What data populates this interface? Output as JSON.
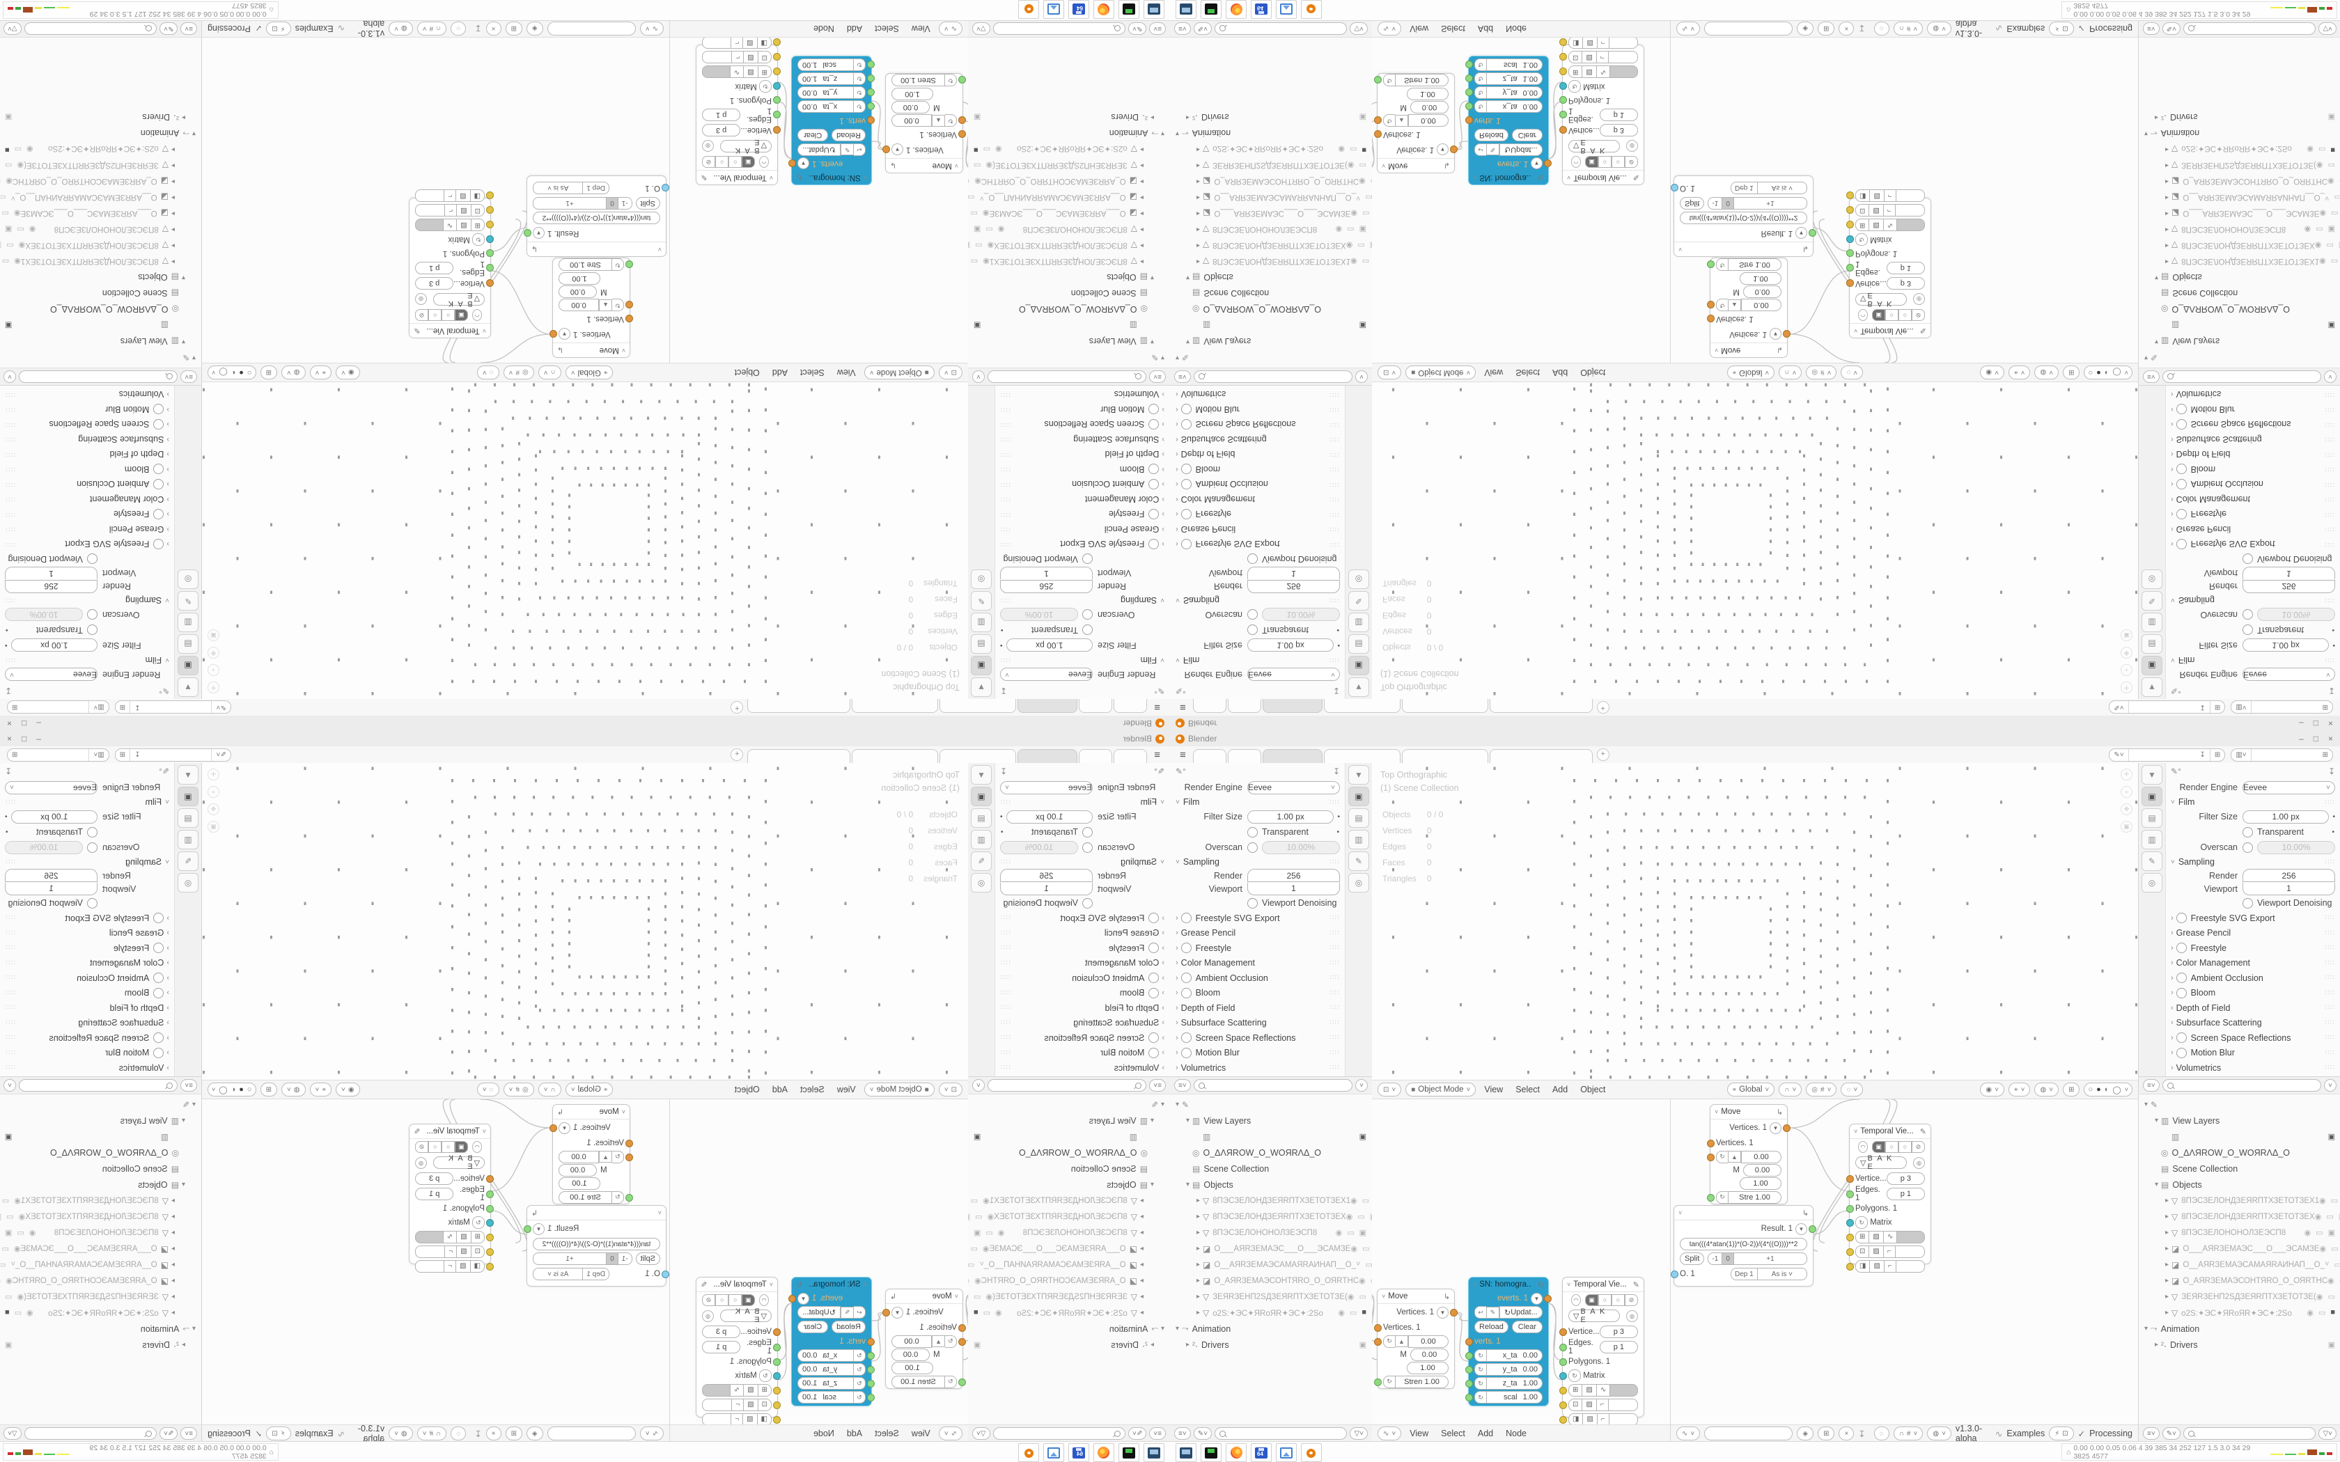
{
  "titlebar": {
    "app": "Blender",
    "minimize": "–",
    "maximize": "□",
    "close": "×",
    "menu": "≡",
    "new_tab": "+"
  },
  "props": {
    "render_engine_label": "Render Engine",
    "render_engine_value": "Eevee",
    "film_title": "Film",
    "filter_size_label": "Filter Size",
    "filter_size_value": "1.00 px",
    "transparent_label": "Transparent",
    "overscan_label": "Overscan",
    "overscan_value": "10.00%",
    "sampling_title": "Sampling",
    "render_label": "Render",
    "render_value": "256",
    "viewport_label": "Viewport",
    "viewport_value": "1",
    "denoise_label": "Viewport Denoising",
    "collapsed": [
      {
        "label": "Freestyle SVG Export"
      },
      {
        "label": "Grease Pencil"
      },
      {
        "label": "Freestyle"
      },
      {
        "label": "Color Management"
      },
      {
        "label": "Ambient Occlusion"
      },
      {
        "label": "Bloom"
      },
      {
        "label": "Depth of Field"
      },
      {
        "label": "Subsurface Scattering"
      },
      {
        "label": "Screen Space Reflections"
      },
      {
        "label": "Motion Blur"
      },
      {
        "label": "Volumetrics"
      }
    ]
  },
  "outliner": {
    "view_layers": "View Layers",
    "world_name": "O_ΔΛЯROW_O_WOЯRΛΔ_O",
    "scene_collection": "Scene Collection",
    "objects_label": "Objects",
    "animation_label": "Animation",
    "drivers_label": "Drivers",
    "items": [
      {
        "name": "8ПЭСЗЕЛОНДЗЕЯRПТХЗЕТОТЗЕХ1"
      },
      {
        "name": "8ПЭСЗЕЛОНДЗЕЯRПТХЗЕТОТЗЕХ"
      },
      {
        "name": "8ПЭСЗЕЛОНОНОЛЗЕЭСП8"
      },
      {
        "name": "О___АЯRЗЕМАЭС___О___ЭСАМЗЕ"
      },
      {
        "name": "О__АЯRЗЕМАЭСАМАЯRАИНАП__О_"
      },
      {
        "name": "О_АЯRЗЕМАЭСОНТЯRО_О_ОЯRТНС"
      },
      {
        "name": "ЗЕЯRЗЕНП2SДЗЕЯRПТХЗЕТОТЗЕ("
      },
      {
        "name": "о2S:✦ЭС✦ЯRоЯR✦ЭС✦:2Sо"
      }
    ]
  },
  "viewport": {
    "overlay_line1": "Top Orthographic",
    "overlay_line2": "(1) Scene Collection",
    "stats": [
      [
        "Objects",
        "0 / 0"
      ],
      [
        "Vertices",
        "0"
      ],
      [
        "Edges",
        "0"
      ],
      [
        "Faces",
        "0"
      ],
      [
        "Triangles",
        "0"
      ]
    ],
    "mode": "Object Mode",
    "menus": [
      "View",
      "Select",
      "Add",
      "Object"
    ],
    "orientation": "Global"
  },
  "node_editor": {
    "menus": [
      "View",
      "Select",
      "Add",
      "Node"
    ],
    "tree_field": "",
    "version": "v1.3.0-alpha",
    "examples": "Examples",
    "status": "Processing"
  },
  "nodes": {
    "move": {
      "title": "Move",
      "output": "Vertices. 1",
      "input": "Vertices. 1",
      "m": "M",
      "x": "0.00",
      "y": "0.00",
      "z": "1.00",
      "strength": "Stren  1.00",
      "strength2": "Stre  1.00"
    },
    "sn": {
      "title": "SN: homogra..",
      "output": "everts. 1",
      "update": "Updat...",
      "reload": "Reload",
      "clear": "Clear",
      "input": "verts. 1",
      "fields": [
        {
          "k": "x_ta",
          "v": "0.00"
        },
        {
          "k": "y_ta",
          "v": "0.00"
        },
        {
          "k": "z_ta",
          "v": "1.00"
        },
        {
          "k": "scal",
          "v": "1.00"
        }
      ]
    },
    "temporal": {
      "title": "Temporal Vie...",
      "bake": "B A K E",
      "r1_label": "Vertice...",
      "r1_val": "p  3",
      "r2_label": "Edges. 1",
      "r2_val": "p  1",
      "r3_label": "Polygons. 1",
      "r4_label": "Matrix"
    },
    "formula": {
      "output": "Result. 1",
      "expr": "tan(((4*atan(1))*(O-2))/(4*((O))))**2",
      "split": "Split",
      "minus": "-1",
      "zero": "0",
      "plus": "+1",
      "o1": "O. 1",
      "dep": "Dep  1",
      "asis": "As is"
    }
  },
  "taskbar": {
    "monitor_prefix": "⌂",
    "stats": "0.00 0.00 0.05 0.06    4    39    385    34    252   127    1.5   3.0    34    29    3825 4577"
  }
}
